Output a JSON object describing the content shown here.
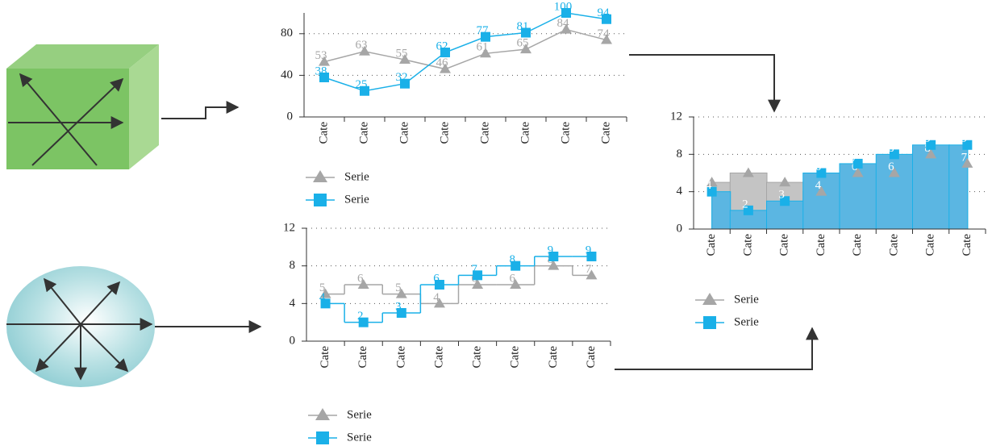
{
  "chart_data": [
    {
      "type": "line",
      "categories": [
        "Cate",
        "Cate",
        "Cate",
        "Cate",
        "Cate",
        "Cate",
        "Cate",
        "Cate"
      ],
      "series": [
        {
          "name": "Serie",
          "color": "#a6a6a6",
          "marker": "triangle",
          "values": [
            53,
            63,
            55,
            46,
            61,
            65,
            84,
            74
          ]
        },
        {
          "name": "Serie",
          "color": "#1ab0e8",
          "marker": "square",
          "values": [
            38,
            25,
            32,
            62,
            77,
            81,
            100,
            94
          ]
        }
      ],
      "ylim": [
        0,
        100
      ],
      "yticks": [
        0,
        40,
        80
      ],
      "grid": true
    },
    {
      "type": "step",
      "categories": [
        "Cate",
        "Cate",
        "Cate",
        "Cate",
        "Cate",
        "Cate",
        "Cate",
        "Cate"
      ],
      "series": [
        {
          "name": "Serie",
          "color": "#a6a6a6",
          "marker": "triangle",
          "values": [
            5,
            6,
            5,
            4,
            6,
            6,
            8,
            7
          ]
        },
        {
          "name": "Serie",
          "color": "#1ab0e8",
          "marker": "square",
          "values": [
            4,
            2,
            3,
            6,
            7,
            8,
            9,
            9
          ]
        }
      ],
      "ylim": [
        0,
        12
      ],
      "yticks": [
        0,
        4,
        8,
        12
      ],
      "grid": true
    },
    {
      "type": "steparea",
      "categories": [
        "Cate",
        "Cate",
        "Cate",
        "Cate",
        "Cate",
        "Cate",
        "Cate",
        "Cate"
      ],
      "series": [
        {
          "name": "Serie",
          "color": "#a6a6a6",
          "marker": "triangle",
          "values": [
            5,
            6,
            5,
            4,
            6,
            6,
            8,
            7
          ]
        },
        {
          "name": "Serie",
          "color": "#1ab0e8",
          "marker": "square",
          "values": [
            4,
            2,
            3,
            6,
            7,
            8,
            9,
            9
          ]
        }
      ],
      "ylim": [
        0,
        12
      ],
      "yticks": [
        0,
        4,
        8,
        12
      ],
      "grid": true
    }
  ]
}
